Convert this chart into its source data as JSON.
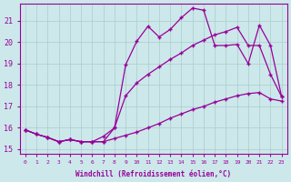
{
  "xlabel": "Windchill (Refroidissement éolien,°C)",
  "bg_color": "#cce8ea",
  "line_color": "#990099",
  "grid_color": "#aacccc",
  "xlim": [
    -0.5,
    23.5
  ],
  "ylim": [
    14.8,
    21.8
  ],
  "yticks": [
    15,
    16,
    17,
    18,
    19,
    20,
    21
  ],
  "xticks": [
    0,
    1,
    2,
    3,
    4,
    5,
    6,
    7,
    8,
    9,
    10,
    11,
    12,
    13,
    14,
    15,
    16,
    17,
    18,
    19,
    20,
    21,
    22,
    23
  ],
  "line1_x": [
    0,
    1,
    2,
    3,
    4,
    5,
    6,
    7,
    8,
    9,
    10,
    11,
    12,
    13,
    14,
    15,
    16,
    17,
    18,
    19,
    20,
    21,
    22,
    23
  ],
  "line1_y": [
    15.9,
    15.7,
    15.55,
    15.35,
    15.45,
    15.35,
    15.35,
    15.35,
    15.5,
    15.65,
    15.8,
    16.0,
    16.2,
    16.45,
    16.65,
    16.85,
    17.0,
    17.2,
    17.35,
    17.5,
    17.6,
    17.65,
    17.35,
    17.25
  ],
  "line2_x": [
    0,
    1,
    2,
    3,
    4,
    5,
    6,
    7,
    8,
    9,
    10,
    11,
    12,
    13,
    14,
    15,
    16,
    17,
    18,
    19,
    20,
    21,
    22,
    23
  ],
  "line2_y": [
    15.9,
    15.7,
    15.55,
    15.35,
    15.45,
    15.35,
    15.35,
    15.35,
    16.0,
    18.95,
    20.05,
    20.75,
    20.25,
    20.6,
    21.15,
    21.6,
    21.5,
    19.85,
    19.85,
    19.9,
    19.0,
    20.8,
    19.85,
    17.45
  ],
  "line3_x": [
    0,
    1,
    2,
    3,
    4,
    5,
    6,
    7,
    8,
    9,
    10,
    11,
    12,
    13,
    14,
    15,
    16,
    17,
    18,
    19,
    20,
    21,
    22,
    23
  ],
  "line3_y": [
    15.9,
    15.7,
    15.55,
    15.35,
    15.45,
    15.35,
    15.35,
    15.6,
    16.0,
    17.5,
    18.1,
    18.5,
    18.85,
    19.2,
    19.5,
    19.85,
    20.1,
    20.35,
    20.5,
    20.7,
    19.85,
    19.85,
    18.5,
    17.45
  ]
}
